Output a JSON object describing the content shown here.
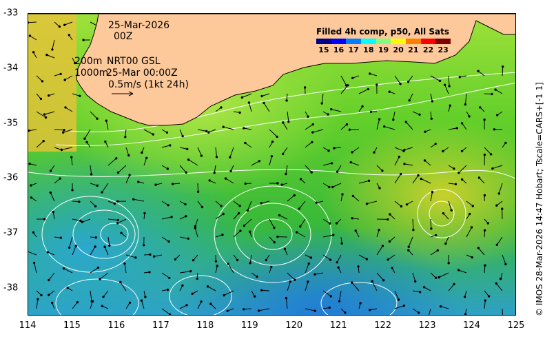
{
  "map": {
    "date_label": "25-Mar-2026",
    "time_label": "00Z",
    "depth_contour_label_1": "200m",
    "depth_contour_label_2": "1000m",
    "product_label": "NRT00 GSL",
    "product_time_label": "25-Mar 00:00Z",
    "velocity_scale_label": "0.5m/s (1kt 24h)",
    "lon_range": [
      114,
      125
    ],
    "lat_range": [
      -38.5,
      -33
    ],
    "x_ticks": [
      "114",
      "115",
      "116",
      "117",
      "118",
      "119",
      "120",
      "121",
      "122",
      "123",
      "124",
      "125"
    ],
    "y_ticks": [
      "-33",
      "-34",
      "-35",
      "-36",
      "-37",
      "-38"
    ],
    "land_color": "#fdc99a",
    "coastline_color": "#000000",
    "contour_color": "#ffffff",
    "arrow_color": "#000000"
  },
  "colorbar": {
    "title": "Filled 4h comp, p50, All Sats",
    "ticks": [
      "15",
      "16",
      "17",
      "18",
      "19",
      "20",
      "21",
      "22",
      "23"
    ],
    "colors": [
      "#00008f",
      "#0000ff",
      "#007fff",
      "#00ffff",
      "#7fff7f",
      "#ffff00",
      "#ff7f00",
      "#ff0000",
      "#7f0000"
    ]
  },
  "credit": "© IMOS 28-Mar-2026 14:47 Hobart; Tscale=CARS+[-1 1]"
}
